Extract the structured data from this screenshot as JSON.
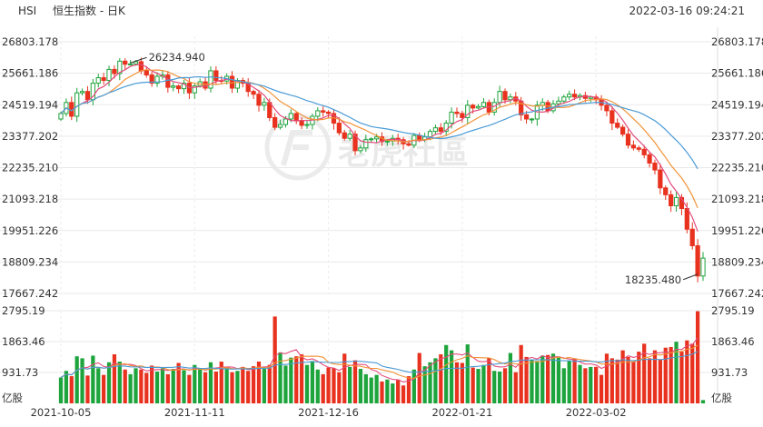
{
  "header": {
    "symbol": "HSI",
    "title": "恒生指数 - 日K",
    "datetime": "2022-03-16 09:24:21"
  },
  "watermark": "老虎社區",
  "chart_data": [
    {
      "type": "candlestick",
      "title": "恒生指数 - 日K",
      "y_ticks": [
        "26803.178",
        "25661.186",
        "24519.194",
        "23377.202",
        "22235.210",
        "21093.218",
        "19951.226",
        "18809.234",
        "17667.242"
      ],
      "ylim": [
        17667.242,
        26803.178
      ],
      "x_ticks": [
        "2021-10-05",
        "2021-11-11",
        "2021-12-16",
        "2022-01-21",
        "2022-03-02"
      ],
      "annotations": {
        "max": "26234.940",
        "min": "18235.480"
      },
      "colors": {
        "up": "#1ea43c",
        "down": "#e8321f",
        "ma5": "#e34c7c",
        "ma10": "#f29237",
        "ma20": "#4a9bd6"
      },
      "close": [
        24200,
        24600,
        24100,
        24950,
        25000,
        24700,
        25300,
        25500,
        25400,
        25800,
        25650,
        26100,
        25990,
        26000,
        26080,
        25750,
        25600,
        25300,
        25550,
        25600,
        25150,
        25200,
        25100,
        25300,
        24950,
        25200,
        25350,
        25120,
        25750,
        25400,
        25380,
        25550,
        25120,
        25400,
        25300,
        25000,
        24900,
        24500,
        24600,
        24050,
        23700,
        23800,
        24000,
        24200,
        23950,
        23770,
        23800,
        24100,
        24300,
        24250,
        24200,
        23850,
        23500,
        23300,
        23450,
        22850,
        22950,
        23250,
        23280,
        23350,
        23180,
        23200,
        23300,
        23250,
        23100,
        23050,
        23400,
        23250,
        23350,
        23550,
        23680,
        23550,
        23850,
        24250,
        24200,
        24050,
        24500,
        24400,
        24450,
        24600,
        24250,
        24600,
        25000,
        24700,
        24800,
        24650,
        24150,
        24000,
        24000,
        24500,
        24600,
        24300,
        24550,
        24650,
        24800,
        24900,
        24800,
        24850,
        24750,
        24800,
        24700,
        24500,
        24300,
        23850,
        23700,
        23450,
        23050,
        22950,
        22900,
        22700,
        22400,
        22150,
        21500,
        21250,
        20850,
        21150,
        20750,
        20000,
        19400,
        18300,
        18950
      ],
      "volume": [
        780,
        980,
        820,
        1420,
        1360,
        840,
        1440,
        1060,
        860,
        1240,
        1480,
        1260,
        1020,
        880,
        1060,
        1020,
        920,
        1140,
        960,
        1060,
        880,
        1040,
        1220,
        1000,
        860,
        1160,
        1040,
        940,
        1240,
        960,
        1260,
        1100,
        940,
        980,
        1100,
        980,
        1120,
        1260,
        1040,
        1160,
        2620,
        1540,
        1140,
        1380,
        1420,
        1480,
        1160,
        1280,
        1020,
        880,
        1080,
        1060,
        940,
        1500,
        1100,
        1300,
        1040,
        880,
        780,
        860,
        660,
        720,
        600,
        720,
        540,
        820,
        1020,
        1520,
        1120,
        1240,
        1360,
        1480,
        1760,
        1600,
        1240,
        1220,
        1780,
        1080,
        1040,
        1160,
        1360,
        980,
        960,
        1060,
        1520,
        940,
        1760,
        1400,
        1320,
        1280,
        1440,
        1460,
        1500,
        1380,
        1060,
        1280,
        1360,
        1160,
        1060,
        1100,
        1100,
        860,
        1500,
        1360,
        1320,
        1600,
        1400,
        1260,
        1560,
        1800,
        1360,
        1600,
        1320,
        1680,
        1700,
        1860,
        1560,
        1900,
        1800,
        2780,
        100
      ]
    },
    {
      "type": "bar",
      "y_ticks": [
        "2795.19",
        "1863.46",
        "931.73"
      ],
      "ylim": [
        0,
        2795.19
      ],
      "unit": "亿股"
    }
  ]
}
